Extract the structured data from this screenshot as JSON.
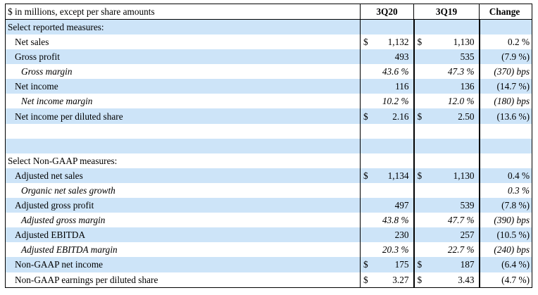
{
  "header": {
    "label": "$ in millions, except per share amounts",
    "col1": "3Q20",
    "col2": "3Q19",
    "col3": "Change"
  },
  "rows": [
    {
      "label": "Select reported measures:",
      "style": "section",
      "shade": true
    },
    {
      "label": "Net sales",
      "style": "in1",
      "shade": false,
      "cur1": "$",
      "v1": "1,132",
      "cur2": "$",
      "v2": "1,130",
      "chg": "0.2 %"
    },
    {
      "label": "Gross profit",
      "style": "in1",
      "shade": true,
      "v1": "493",
      "v2": "535",
      "chg": "(7.9 %)"
    },
    {
      "label": "Gross margin",
      "style": "in2",
      "shade": false,
      "italic": true,
      "v1": "43.6 %",
      "v2": "47.3 %",
      "chg": "(370) bps"
    },
    {
      "label": "Net income",
      "style": "in1",
      "shade": true,
      "v1": "116",
      "v2": "136",
      "chg": "(14.7 %)"
    },
    {
      "label": "Net income margin",
      "style": "in2",
      "shade": false,
      "italic": true,
      "v1": "10.2 %",
      "v2": "12.0 %",
      "chg": "(180) bps"
    },
    {
      "label": "Net income per diluted share",
      "style": "in1",
      "shade": true,
      "cur1": "$",
      "v1": "2.16",
      "cur2": "$",
      "v2": "2.50",
      "chg": "(13.6 %)"
    },
    {
      "label": "",
      "style": "blank",
      "shade": false
    },
    {
      "label": "",
      "style": "blank",
      "shade": true
    },
    {
      "label": "Select Non-GAAP measures:",
      "style": "section",
      "shade": false
    },
    {
      "label": "Adjusted net sales",
      "style": "in1",
      "shade": true,
      "cur1": "$",
      "v1": "1,134",
      "cur2": "$",
      "v2": "1,130",
      "chg": "0.4 %"
    },
    {
      "label": "Organic net sales growth",
      "style": "in2",
      "shade": false,
      "italic": true,
      "chg": "0.3 %"
    },
    {
      "label": "Adjusted gross profit",
      "style": "in1",
      "shade": true,
      "v1": "497",
      "v2": "539",
      "chg": "(7.8 %)"
    },
    {
      "label": "Adjusted gross margin",
      "style": "in2",
      "shade": false,
      "italic": true,
      "v1": "43.8 %",
      "v2": "47.7 %",
      "chg": "(390) bps"
    },
    {
      "label": "Adjusted EBITDA",
      "style": "in1",
      "shade": true,
      "v1": "230",
      "v2": "257",
      "chg": "(10.5 %)"
    },
    {
      "label": "Adjusted EBITDA margin",
      "style": "in2",
      "shade": false,
      "italic": true,
      "v1": "20.3 %",
      "v2": "22.7 %",
      "chg": "(240) bps"
    },
    {
      "label": "Non-GAAP net income",
      "style": "in1",
      "shade": true,
      "cur1": "$",
      "v1": "175",
      "cur2": "$",
      "v2": "187",
      "chg": "(6.4 %)"
    },
    {
      "label": "Non-GAAP earnings per diluted share",
      "style": "in1",
      "shade": false,
      "cur1": "$",
      "v1": "3.27",
      "cur2": "$",
      "v2": "3.43",
      "chg": "(4.7 %)"
    }
  ]
}
